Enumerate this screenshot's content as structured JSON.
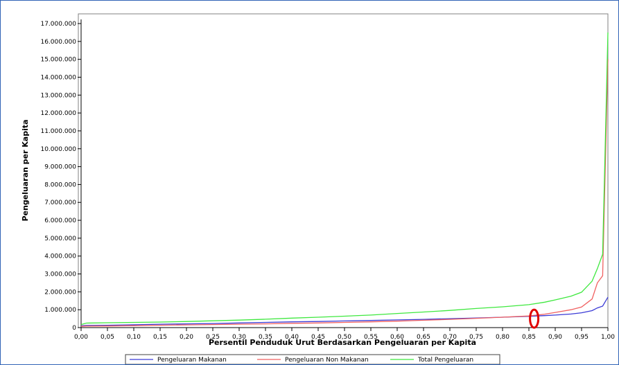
{
  "chart_data": {
    "type": "line",
    "title": "",
    "xlabel": "Persentil Penduduk Urut Berdasarkan Pengeluaran per Kapita",
    "ylabel": "Pengeluaran per Kapita",
    "xlim": [
      0,
      1
    ],
    "ylim": [
      0,
      17000000
    ],
    "grid": false,
    "legend_position": "bottom",
    "x_ticks": [
      "0,00",
      "0,05",
      "0,10",
      "0,15",
      "0,20",
      "0,25",
      "0,30",
      "0,35",
      "0,40",
      "0,45",
      "0,50",
      "0,55",
      "0,60",
      "0,65",
      "0,70",
      "0,75",
      "0,80",
      "0,85",
      "0,90",
      "0,95",
      "1,00"
    ],
    "y_ticks": [
      "0",
      "1.000.000",
      "2.000.000",
      "3.000.000",
      "4.000.000",
      "5.000.000",
      "6.000.000",
      "7.000.000",
      "8.000.000",
      "9.000.000",
      "10.000.000",
      "11.000.000",
      "12.000.000",
      "13.000.000",
      "14.000.000",
      "15.000.000",
      "16.000.000",
      "17.000.000"
    ],
    "x": [
      0.0,
      0.01,
      0.05,
      0.1,
      0.15,
      0.2,
      0.25,
      0.3,
      0.35,
      0.4,
      0.45,
      0.5,
      0.55,
      0.6,
      0.65,
      0.7,
      0.75,
      0.8,
      0.85,
      0.88,
      0.9,
      0.93,
      0.95,
      0.97,
      0.98,
      0.99,
      1.0
    ],
    "series": [
      {
        "name": "Pengeluaran Makanan",
        "color": "#3a3ad6",
        "values": [
          100000,
          120000,
          130000,
          160000,
          190000,
          210000,
          230000,
          260000,
          290000,
          320000,
          340000,
          370000,
          400000,
          430000,
          460000,
          500000,
          540000,
          580000,
          630000,
          670000,
          700000,
          760000,
          830000,
          950000,
          1100000,
          1200000,
          1700000
        ]
      },
      {
        "name": "Pengeluaran Non Makanan",
        "color": "#f06060",
        "values": [
          70000,
          80000,
          90000,
          110000,
          130000,
          150000,
          170000,
          190000,
          210000,
          240000,
          260000,
          290000,
          320000,
          360000,
          410000,
          460000,
          520000,
          580000,
          650000,
          750000,
          850000,
          1000000,
          1150000,
          1600000,
          2500000,
          2900000,
          15000000
        ]
      },
      {
        "name": "Total Pengeluaran",
        "color": "#3ee83e",
        "values": [
          170000,
          250000,
          270000,
          290000,
          310000,
          340000,
          380000,
          420000,
          470000,
          530000,
          580000,
          640000,
          700000,
          790000,
          870000,
          960000,
          1070000,
          1160000,
          1280000,
          1420000,
          1550000,
          1760000,
          1980000,
          2600000,
          3300000,
          4100000,
          16500000
        ]
      }
    ],
    "annotations": [
      {
        "type": "red-ellipse-marker",
        "x": 0.86,
        "y": 500000
      }
    ]
  }
}
